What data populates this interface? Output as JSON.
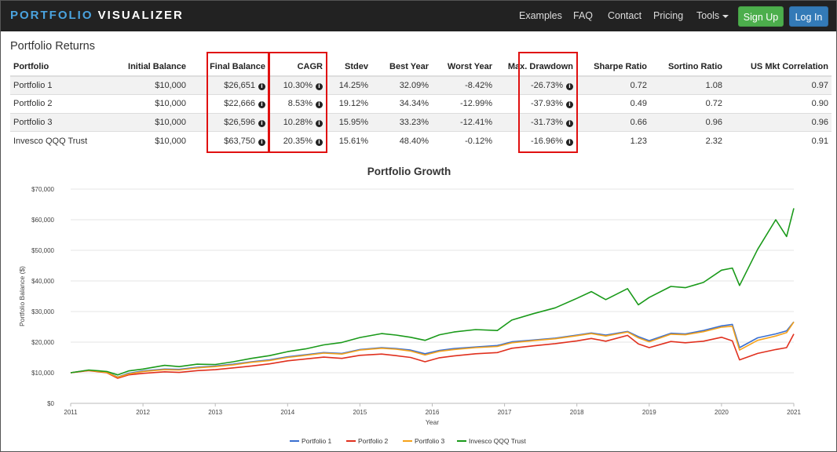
{
  "brand": {
    "part1": "PORTFOLIO",
    "part2": "VISUALIZER"
  },
  "nav": {
    "examples": "Examples",
    "faq": "FAQ",
    "contact": "Contact",
    "pricing": "Pricing",
    "tools": "Tools",
    "signup": "Sign Up",
    "login": "Log In"
  },
  "returns": {
    "title": "Portfolio Returns",
    "headers": [
      "Portfolio",
      "Initial Balance",
      "Final Balance",
      "CAGR",
      "Stdev",
      "Best Year",
      "Worst Year",
      "Max. Drawdown",
      "Sharpe Ratio",
      "Sortino Ratio",
      "US Mkt Correlation"
    ],
    "rows": [
      [
        "Portfolio 1",
        "$10,000",
        "$26,651",
        "10.30%",
        "14.25%",
        "32.09%",
        "-8.42%",
        "-26.73%",
        "0.72",
        "1.08",
        "0.97"
      ],
      [
        "Portfolio 2",
        "$10,000",
        "$22,666",
        "8.53%",
        "19.12%",
        "34.34%",
        "-12.99%",
        "-37.93%",
        "0.49",
        "0.72",
        "0.90"
      ],
      [
        "Portfolio 3",
        "$10,000",
        "$26,596",
        "10.28%",
        "15.95%",
        "33.23%",
        "-12.41%",
        "-31.73%",
        "0.66",
        "0.96",
        "0.96"
      ],
      [
        "Invesco QQQ Trust",
        "$10,000",
        "$63,750",
        "20.35%",
        "15.61%",
        "48.40%",
        "-0.12%",
        "-16.96%",
        "1.23",
        "2.32",
        "0.91"
      ]
    ]
  },
  "colors": {
    "portfolio1": "#3a6fd0",
    "portfolio2": "#e0301e",
    "portfolio3": "#f5a21a",
    "qqq": "#1a9a1a",
    "highlight": "#e01010"
  },
  "chart_data": {
    "type": "line",
    "title": "Portfolio Growth",
    "xlabel": "Year",
    "ylabel": "Portfolio Balance ($)",
    "xlim": [
      2011,
      2021
    ],
    "ylim": [
      0,
      70000
    ],
    "xticks": [
      "2011",
      "2012",
      "2013",
      "2014",
      "2015",
      "2016",
      "2017",
      "2018",
      "2019",
      "2020",
      "2021"
    ],
    "yticks": [
      "$0",
      "$10,000",
      "$20,000",
      "$30,000",
      "$40,000",
      "$50,000",
      "$60,000",
      "$70,000"
    ],
    "x": [
      2011.0,
      2011.25,
      2011.5,
      2011.65,
      2011.8,
      2012.0,
      2012.3,
      2012.5,
      2012.75,
      2013.0,
      2013.25,
      2013.5,
      2013.75,
      2014.0,
      2014.25,
      2014.5,
      2014.75,
      2015.0,
      2015.3,
      2015.5,
      2015.7,
      2015.9,
      2016.1,
      2016.3,
      2016.6,
      2016.9,
      2017.1,
      2017.4,
      2017.7,
      2018.0,
      2018.2,
      2018.4,
      2018.7,
      2018.85,
      2019.0,
      2019.3,
      2019.5,
      2019.75,
      2020.0,
      2020.15,
      2020.25,
      2020.5,
      2020.75,
      2020.9,
      2021.0
    ],
    "series": [
      {
        "name": "Portfolio 1",
        "values": [
          10000,
          10800,
          10200,
          8600,
          9800,
          10600,
          11200,
          11100,
          11800,
          12200,
          12800,
          13600,
          14200,
          15200,
          15900,
          16600,
          16300,
          17600,
          18200,
          17900,
          17400,
          16200,
          17300,
          17900,
          18400,
          18900,
          20100,
          20700,
          21300,
          22300,
          23000,
          22300,
          23500,
          21800,
          20500,
          22900,
          22700,
          23800,
          25300,
          25800,
          18200,
          21400,
          22700,
          23700,
          26651
        ]
      },
      {
        "name": "Portfolio 2",
        "values": [
          10000,
          10700,
          10000,
          8200,
          9300,
          9800,
          10300,
          10100,
          10700,
          11000,
          11600,
          12200,
          12900,
          13900,
          14500,
          15100,
          14700,
          15700,
          16100,
          15600,
          15000,
          13600,
          14900,
          15500,
          16200,
          16600,
          18000,
          18800,
          19500,
          20400,
          21200,
          20300,
          22200,
          19400,
          18200,
          20200,
          19800,
          20300,
          21600,
          20400,
          14200,
          16300,
          17600,
          18200,
          22666
        ]
      },
      {
        "name": "Portfolio 3",
        "values": [
          10000,
          10800,
          10100,
          8500,
          9600,
          10400,
          11000,
          10900,
          11600,
          12000,
          12600,
          13400,
          14000,
          15000,
          15700,
          16400,
          16100,
          17400,
          18000,
          17700,
          17100,
          15800,
          17000,
          17600,
          18200,
          18600,
          19800,
          20500,
          21100,
          22100,
          22800,
          22000,
          23300,
          21400,
          20100,
          22600,
          22400,
          23400,
          24900,
          25200,
          17400,
          20600,
          22000,
          23100,
          26596
        ]
      },
      {
        "name": "Invesco QQQ Trust",
        "values": [
          10000,
          10900,
          10400,
          9300,
          10600,
          11200,
          12400,
          12000,
          12800,
          12700,
          13600,
          14700,
          15600,
          16900,
          17800,
          19100,
          19900,
          21500,
          22800,
          22300,
          21600,
          20600,
          22400,
          23300,
          24100,
          23800,
          27200,
          29300,
          31200,
          34300,
          36500,
          33900,
          37500,
          32200,
          34600,
          38200,
          37800,
          39500,
          43500,
          44200,
          38500,
          50300,
          60000,
          54500,
          63750
        ]
      }
    ],
    "legend_position": "bottom-center"
  }
}
